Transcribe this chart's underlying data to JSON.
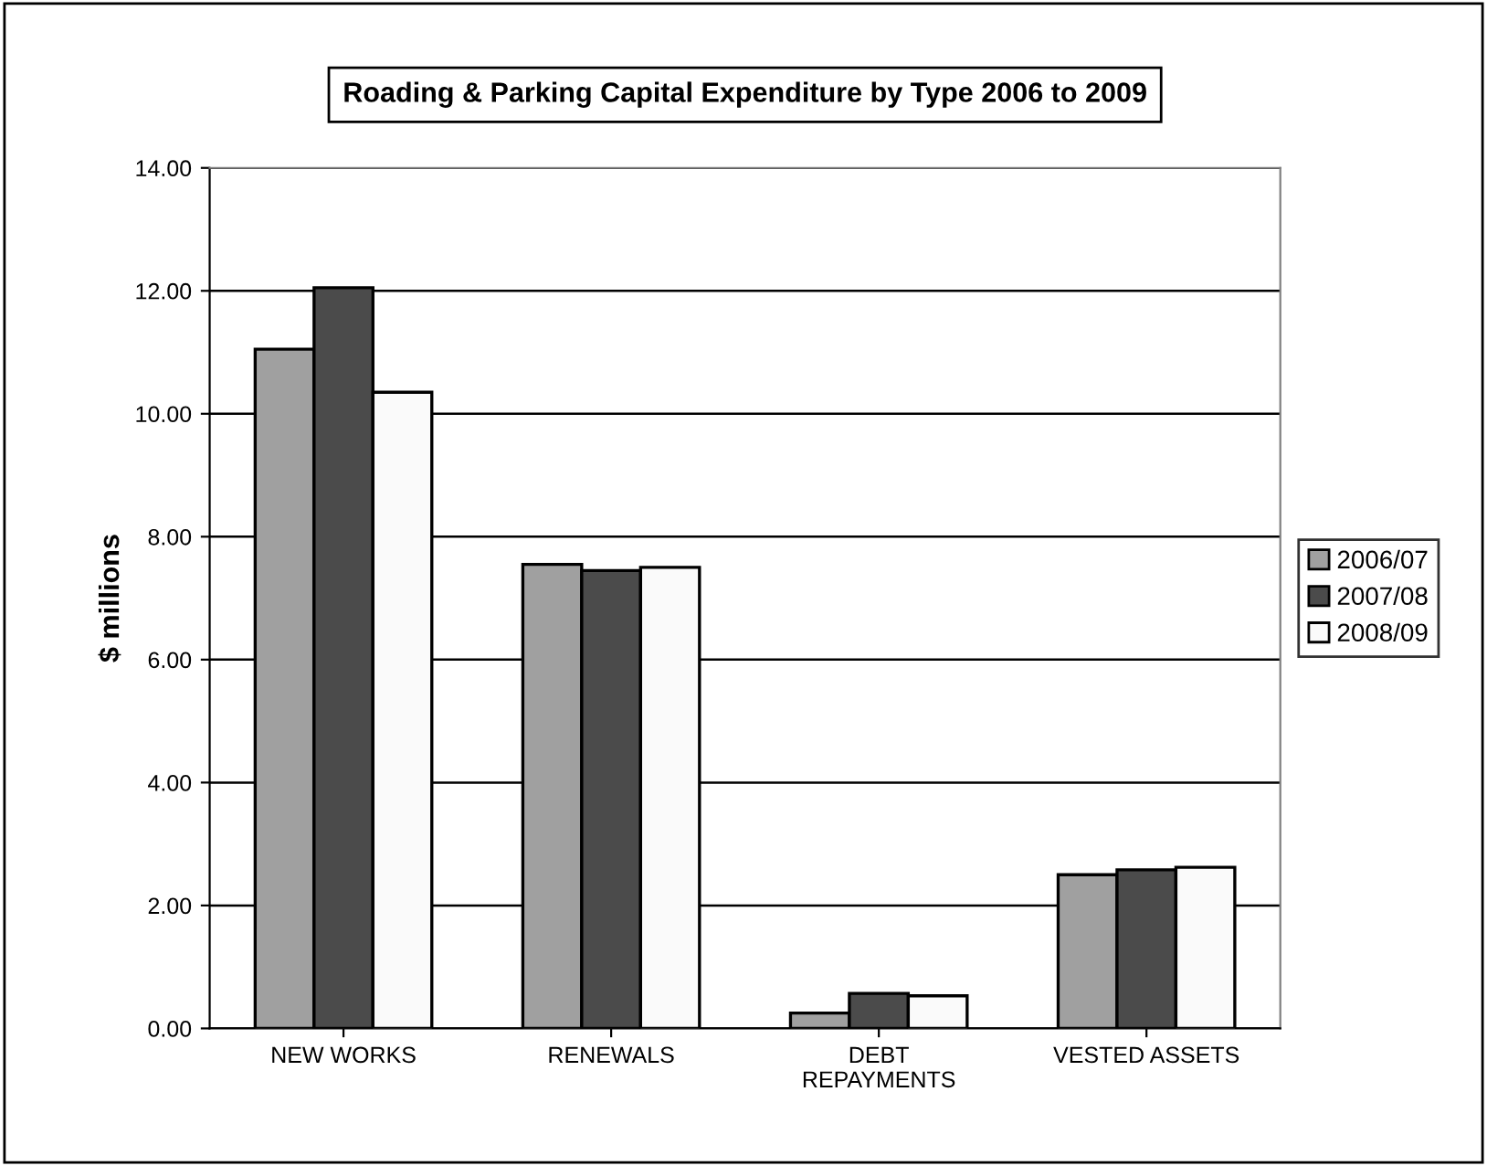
{
  "chart_data": {
    "type": "bar",
    "title": "Roading & Parking Capital Expenditure by Type 2006 to 2009",
    "ylabel": "$ millions",
    "categories": [
      "NEW WORKS",
      "RENEWALS",
      "DEBT\nREPAYMENTS",
      "VESTED ASSETS"
    ],
    "series": [
      {
        "name": "2006/07",
        "color": "#a0a0a0",
        "values": [
          11.05,
          7.55,
          0.25,
          2.5
        ]
      },
      {
        "name": "2007/08",
        "color": "#4b4b4b",
        "values": [
          12.05,
          7.45,
          0.57,
          2.58
        ]
      },
      {
        "name": "2008/09",
        "color": "#fafafa",
        "values": [
          10.35,
          7.5,
          0.53,
          2.62
        ]
      }
    ],
    "ylim": [
      0,
      14
    ],
    "yticks": [
      {
        "value": 0,
        "label": "0.00"
      },
      {
        "value": 2,
        "label": "2.00"
      },
      {
        "value": 4,
        "label": "4.00"
      },
      {
        "value": 6,
        "label": "6.00"
      },
      {
        "value": 8,
        "label": "8.00"
      },
      {
        "value": 10,
        "label": "10.00"
      },
      {
        "value": 12,
        "label": "12.00"
      },
      {
        "value": 14,
        "label": "14.00"
      }
    ],
    "grid": "y",
    "legend": "right"
  }
}
